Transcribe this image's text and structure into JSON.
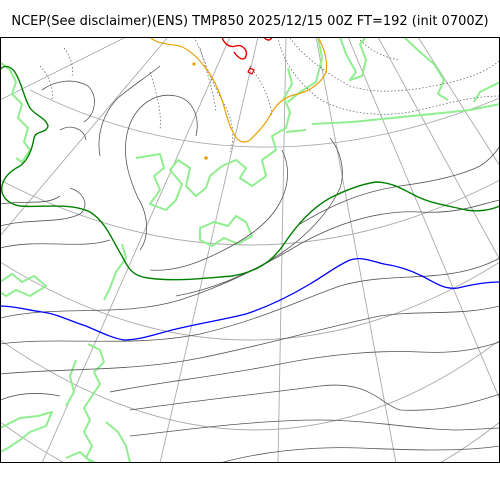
{
  "title": "NCEP(See disclaimer)(ENS) TMP850 2025/12/15 00Z FT=192 (init 0700Z)",
  "colors": {
    "background": "#ffffff",
    "frame": "#000000",
    "graticule": "#aaaaaa",
    "coastline": "#90ee90",
    "contour": "#555555",
    "dotted_contour": "#555555",
    "isotherm_0": "#008000",
    "isotherm_minus6": "#0000ff",
    "isotherm_warm": "#e8a000",
    "isotherm_hot": "#e00000"
  }
}
